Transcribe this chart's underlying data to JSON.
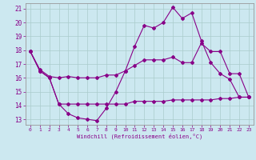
{
  "xlabel": "Windchill (Refroidissement éolien,°C)",
  "bg_color": "#cce8f0",
  "line_color": "#880088",
  "grid_color": "#aacccc",
  "xlim": [
    -0.5,
    23.5
  ],
  "ylim": [
    12.6,
    21.4
  ],
  "yticks": [
    13,
    14,
    15,
    16,
    17,
    18,
    19,
    20,
    21
  ],
  "xticks": [
    0,
    1,
    2,
    3,
    4,
    5,
    6,
    7,
    8,
    9,
    10,
    11,
    12,
    13,
    14,
    15,
    16,
    17,
    18,
    19,
    20,
    21,
    22,
    23
  ],
  "series1_x": [
    0,
    1,
    2,
    3,
    4,
    5,
    6,
    7,
    8,
    9,
    10,
    11,
    12,
    13,
    14,
    15,
    16,
    17,
    18,
    19,
    20,
    21,
    22,
    23
  ],
  "series1_y": [
    17.9,
    16.5,
    16.0,
    14.1,
    13.4,
    13.1,
    13.0,
    12.9,
    13.8,
    15.0,
    16.5,
    18.3,
    19.8,
    19.6,
    20.0,
    21.1,
    20.3,
    20.7,
    18.7,
    17.1,
    16.3,
    15.9,
    14.6,
    14.6
  ],
  "series2_x": [
    0,
    1,
    2,
    3,
    4,
    5,
    6,
    7,
    8,
    9,
    10,
    11,
    12,
    13,
    14,
    15,
    16,
    17,
    18,
    19,
    20,
    21,
    22,
    23
  ],
  "series2_y": [
    17.9,
    16.5,
    16.0,
    14.1,
    14.1,
    14.1,
    14.1,
    14.1,
    14.1,
    14.1,
    14.1,
    14.3,
    14.3,
    14.3,
    14.3,
    14.4,
    14.4,
    14.4,
    14.4,
    14.4,
    14.5,
    14.5,
    14.6,
    14.6
  ],
  "series3_x": [
    0,
    1,
    2,
    3,
    4,
    5,
    6,
    7,
    8,
    9,
    10,
    11,
    12,
    13,
    14,
    15,
    16,
    17,
    18,
    19,
    20,
    21,
    22,
    23
  ],
  "series3_y": [
    17.9,
    16.6,
    16.1,
    16.0,
    16.1,
    16.0,
    16.0,
    16.0,
    16.2,
    16.2,
    16.5,
    16.9,
    17.3,
    17.3,
    17.3,
    17.5,
    17.1,
    17.1,
    18.5,
    17.9,
    17.9,
    16.3,
    16.3,
    14.6
  ]
}
